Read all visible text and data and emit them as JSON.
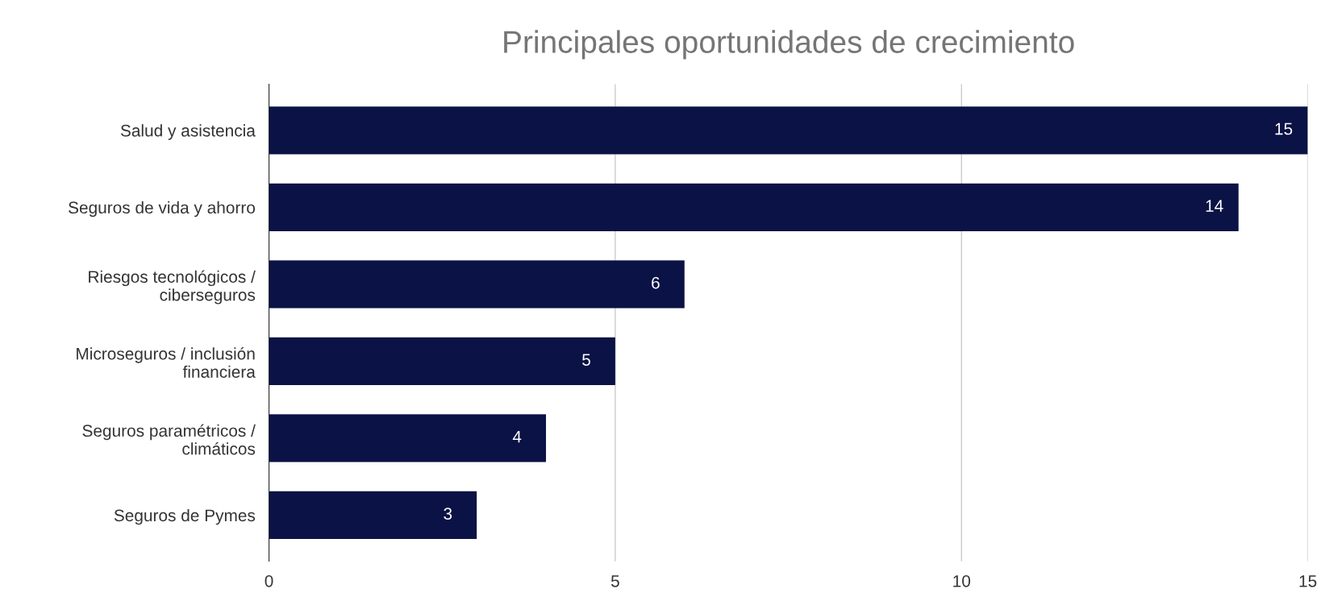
{
  "chart_data": {
    "type": "bar",
    "orientation": "horizontal",
    "title": "Principales oportunidades de crecimiento",
    "categories": [
      "Salud y asistencia",
      "Seguros de vida y ahorro",
      "Riesgos tecnológicos /\nciberseguros",
      "Microseguros / inclusión\nfinanciera",
      "Seguros paramétricos /\nclimáticos",
      "Seguros de Pymes"
    ],
    "values": [
      15,
      14,
      6,
      5,
      4,
      3
    ],
    "color": "#0b1245",
    "xlim": [
      0,
      15
    ],
    "xticks": [
      0,
      5,
      10,
      15
    ],
    "grid": "x",
    "data_labels": true
  }
}
